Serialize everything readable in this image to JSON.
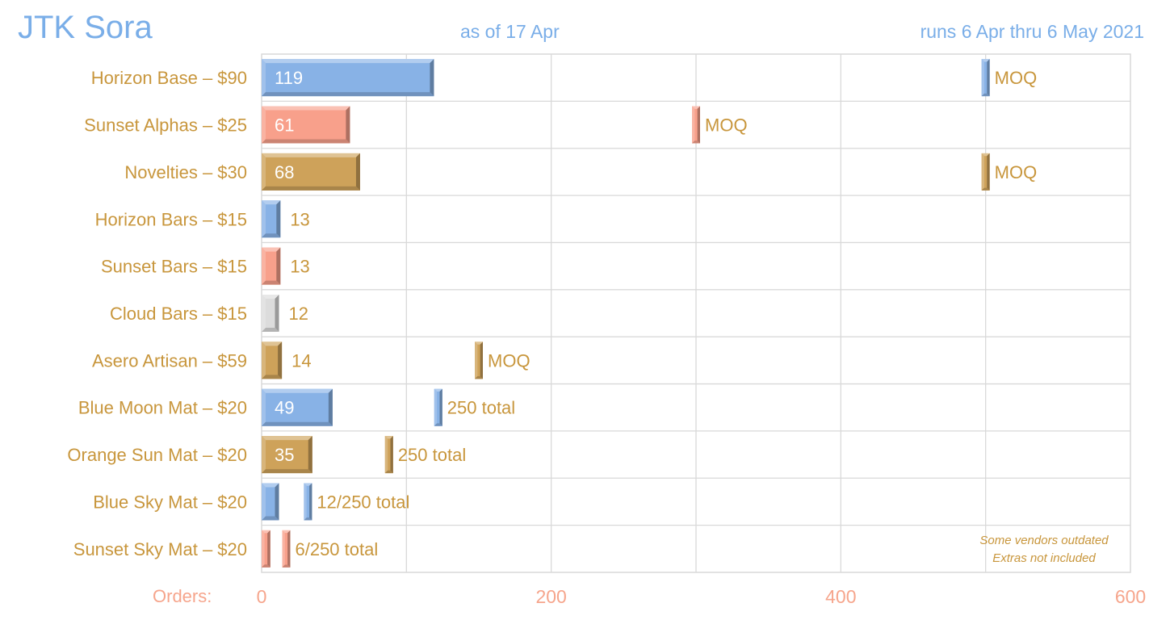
{
  "colors": {
    "blue": "#88b2e6",
    "salmon": "#f8a08b",
    "gold": "#cea25a",
    "grey": "#dcdcdc",
    "label": "#c8963c",
    "header": "#7aaee8",
    "axis": "#f6a58c",
    "grid": "#d9d9d9"
  },
  "header": {
    "title": "JTK Sora",
    "as_of": "as of 17 Apr",
    "runs": "runs 6 Apr thru 6 May 2021"
  },
  "footer": {
    "orders_label": "Orders:",
    "note_line1": "Some vendors outdated",
    "note_line2": "Extras not included"
  },
  "chart_data": {
    "type": "bar",
    "orientation": "horizontal",
    "xlim": [
      0,
      600
    ],
    "xticks": [
      0,
      200,
      400,
      600
    ],
    "grid": true,
    "categories": [
      "Horizon Base – $90",
      "Sunset Alphas – $25",
      "Novelties – $30",
      "Horizon Bars – $15",
      "Sunset Bars – $15",
      "Cloud Bars – $15",
      "Asero Artisan – $59",
      "Blue Moon Mat – $20",
      "Orange Sun Mat – $20",
      "Blue Sky Mat – $20",
      "Sunset Sky Mat – $20"
    ],
    "rows": [
      {
        "value": 119,
        "label": "119",
        "label_inside": true,
        "color": "blue",
        "marker": 500,
        "marker_label": "MOQ"
      },
      {
        "value": 61,
        "label": "61",
        "label_inside": true,
        "color": "salmon",
        "marker": 300,
        "marker_label": "MOQ"
      },
      {
        "value": 68,
        "label": "68",
        "label_inside": true,
        "color": "gold",
        "marker": 500,
        "marker_label": "MOQ"
      },
      {
        "value": 13,
        "label": "13",
        "label_inside": false,
        "color": "blue",
        "marker": null,
        "marker_label": ""
      },
      {
        "value": 13,
        "label": "13",
        "label_inside": false,
        "color": "salmon",
        "marker": null,
        "marker_label": ""
      },
      {
        "value": 12,
        "label": "12",
        "label_inside": false,
        "color": "grey",
        "marker": null,
        "marker_label": ""
      },
      {
        "value": 14,
        "label": "14",
        "label_inside": false,
        "color": "gold",
        "marker": 150,
        "marker_label": "MOQ"
      },
      {
        "value": 49,
        "label": "49",
        "label_inside": true,
        "color": "blue",
        "marker": 122,
        "marker_label": "250 total"
      },
      {
        "value": 35,
        "label": "35",
        "label_inside": true,
        "color": "gold",
        "marker": 88,
        "marker_label": "250 total"
      },
      {
        "value": 12,
        "label": "",
        "label_inside": false,
        "color": "blue",
        "marker": 32,
        "marker_label": "12/250 total"
      },
      {
        "value": 6,
        "label": "",
        "label_inside": false,
        "color": "salmon",
        "marker": 17,
        "marker_label": "6/250 total"
      }
    ]
  }
}
